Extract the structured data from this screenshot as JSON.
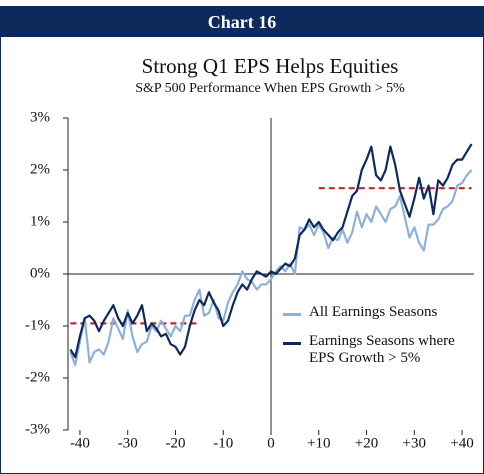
{
  "header": "Chart 16",
  "chart_data": {
    "type": "line",
    "title": "Strong Q1 EPS Helps Equities",
    "subtitle": "S&P 500 Performance When EPS Growth > 5%",
    "x": [
      -42,
      -41,
      -40,
      -39,
      -38,
      -37,
      -36,
      -35,
      -34,
      -33,
      -32,
      -31,
      -30,
      -29,
      -28,
      -27,
      -26,
      -25,
      -24,
      -23,
      -22,
      -21,
      -20,
      -19,
      -18,
      -17,
      -16,
      -15,
      -14,
      -13,
      -12,
      -11,
      -10,
      -9,
      -8,
      -7,
      -6,
      -5,
      -4,
      -3,
      -2,
      -1,
      0,
      1,
      2,
      3,
      4,
      5,
      6,
      7,
      8,
      9,
      10,
      11,
      12,
      13,
      14,
      15,
      16,
      17,
      18,
      19,
      20,
      21,
      22,
      23,
      24,
      25,
      26,
      27,
      28,
      29,
      30,
      31,
      32,
      33,
      34,
      35,
      36,
      37,
      38,
      39,
      40,
      41,
      42
    ],
    "series": [
      {
        "name": "All Earnings Seasons",
        "color": "#8fb0d9",
        "values": [
          -1.5,
          -1.75,
          -1.3,
          -0.85,
          -1.7,
          -1.5,
          -1.45,
          -1.55,
          -1.3,
          -0.85,
          -1.05,
          -1.25,
          -0.7,
          -1.2,
          -1.5,
          -1.35,
          -1.3,
          -1.0,
          -1.1,
          -0.9,
          -1.05,
          -1.2,
          -1.0,
          -1.1,
          -0.8,
          -0.8,
          -0.5,
          -0.3,
          -0.8,
          -0.75,
          -0.5,
          -0.85,
          -0.9,
          -0.55,
          -0.35,
          -0.2,
          0.05,
          -0.1,
          -0.15,
          -0.3,
          -0.2,
          -0.2,
          -0.1,
          0.05,
          0.15,
          0.05,
          0.2,
          0.0,
          0.9,
          0.85,
          0.95,
          0.75,
          0.95,
          0.8,
          0.5,
          0.7,
          0.65,
          0.85,
          0.6,
          0.8,
          1.2,
          0.9,
          1.15,
          1.0,
          1.3,
          1.15,
          1.0,
          1.25,
          1.3,
          1.5,
          1.1,
          0.7,
          0.9,
          0.6,
          0.45,
          0.95,
          0.95,
          1.05,
          1.25,
          1.3,
          1.4,
          1.7,
          1.75,
          1.9,
          2.0
        ]
      },
      {
        "name": "Earnings Seasons where EPS Growth > 5%",
        "color": "#0d2a5c",
        "values": [
          -1.45,
          -1.6,
          -1.2,
          -0.85,
          -0.8,
          -0.9,
          -1.1,
          -0.9,
          -0.75,
          -0.6,
          -0.85,
          -1.0,
          -0.75,
          -0.95,
          -0.8,
          -0.6,
          -1.1,
          -0.95,
          -1.05,
          -1.2,
          -1.15,
          -1.35,
          -1.4,
          -1.55,
          -1.4,
          -1.0,
          -0.7,
          -0.5,
          -0.6,
          -0.35,
          -0.55,
          -0.7,
          -1.0,
          -0.9,
          -0.6,
          -0.35,
          -0.2,
          -0.3,
          -0.1,
          0.05,
          0.0,
          -0.05,
          0.05,
          0.0,
          0.1,
          0.2,
          0.15,
          0.3,
          0.75,
          0.85,
          1.05,
          0.9,
          1.0,
          0.85,
          0.75,
          0.65,
          0.8,
          0.9,
          1.2,
          1.5,
          1.6,
          2.0,
          2.2,
          2.45,
          1.9,
          1.8,
          2.0,
          2.45,
          2.1,
          1.6,
          1.35,
          1.1,
          1.45,
          1.85,
          1.45,
          1.7,
          1.15,
          1.8,
          1.7,
          1.85,
          2.1,
          2.2,
          2.2,
          2.35,
          2.5
        ]
      }
    ],
    "reference_lines": [
      {
        "x": [
          -42,
          -15
        ],
        "value": -0.95,
        "color": "#c0262c"
      },
      {
        "x": [
          10,
          42
        ],
        "value": 1.65,
        "color": "#c0262c"
      }
    ],
    "xlim": [
      -42.5,
      42.5
    ],
    "xticks": [
      -40,
      -30,
      -20,
      -10,
      0,
      {
        "value": 10,
        "label": "+10"
      },
      {
        "value": 20,
        "label": "+20"
      },
      {
        "value": 30,
        "label": "+30"
      },
      {
        "value": 40,
        "label": "+40"
      }
    ],
    "ylim": [
      -3,
      3
    ],
    "yticks": [
      {
        "value": -3,
        "label": "-3%"
      },
      {
        "value": -2,
        "label": "-2%"
      },
      {
        "value": -1,
        "label": "-1%"
      },
      {
        "value": 0,
        "label": "0%"
      },
      {
        "value": 1,
        "label": "1%"
      },
      {
        "value": 2,
        "label": "2%"
      },
      {
        "value": 3,
        "label": "3%"
      }
    ],
    "legend": "right"
  }
}
